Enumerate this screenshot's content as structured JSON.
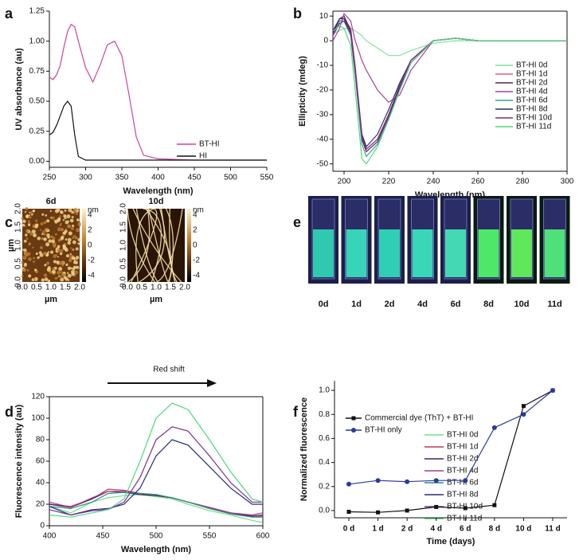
{
  "panel_labels": [
    "a",
    "b",
    "c",
    "d",
    "e",
    "f"
  ],
  "chart_data": [
    {
      "type": "line",
      "x_label": "Wavelength (nm)",
      "y_label": "UV absorbance (au)",
      "x": [
        250,
        255,
        260,
        265,
        270,
        275,
        280,
        285,
        290,
        300,
        310,
        320,
        330,
        340,
        350,
        360,
        370,
        380,
        400,
        450,
        500,
        550
      ],
      "xlim": [
        250,
        550
      ],
      "xticks": [
        250,
        300,
        350,
        400,
        450,
        500,
        550
      ],
      "ylim": [
        -0.05,
        1.25
      ],
      "yticks": [
        {
          "value": 0,
          "label": "0.00"
        },
        {
          "value": 0.25,
          "label": "0.25"
        },
        {
          "value": 0.5,
          "label": "0.50"
        },
        {
          "value": 0.75,
          "label": "0.75"
        },
        {
          "value": 1,
          "label": "1.00"
        },
        {
          "value": 1.25,
          "label": "1.25"
        }
      ],
      "series": [
        {
          "name": "BT-HI",
          "color": "#c8449c",
          "values": [
            0.7,
            0.68,
            0.72,
            0.8,
            0.95,
            1.08,
            1.14,
            1.12,
            1.0,
            0.78,
            0.66,
            0.8,
            0.97,
            1.0,
            0.88,
            0.55,
            0.2,
            0.05,
            0.02,
            0.01,
            0.01,
            0.01
          ]
        },
        {
          "name": "HI",
          "color": "#111111",
          "values": [
            0.22,
            0.24,
            0.3,
            0.38,
            0.46,
            0.5,
            0.46,
            0.22,
            0.04,
            0.01,
            0.01,
            0.01,
            0.01,
            0.01,
            0.01,
            0.01,
            0.01,
            0.01,
            0.01,
            0.01,
            0.01,
            0.01
          ]
        }
      ]
    },
    {
      "type": "line",
      "x_label": "Wavelength (nm)",
      "y_label": "Ellipticity (mdeg)",
      "x": [
        195,
        198,
        200,
        203,
        205,
        208,
        210,
        215,
        220,
        225,
        230,
        240,
        250,
        260,
        280,
        300
      ],
      "xlim": [
        195,
        300
      ],
      "xticks": [
        200,
        220,
        240,
        260,
        280,
        300
      ],
      "ylim": [
        -53,
        12
      ],
      "yticks": [
        -50,
        -40,
        -30,
        -20,
        -10,
        0,
        10
      ],
      "series": [
        {
          "name": "BT-HI 0d",
          "color": "#7de39a",
          "values": [
            3,
            4,
            5,
            5,
            4,
            2,
            0,
            -3,
            -6,
            -6,
            -4,
            -1,
            0,
            0,
            0,
            0
          ]
        },
        {
          "name": "BT-HI 1d",
          "color": "#d95c8a",
          "values": [
            2,
            8,
            9,
            5,
            -10,
            -38,
            -44,
            -40,
            -30,
            -18,
            -8,
            0,
            1,
            0,
            0,
            0
          ]
        },
        {
          "name": "BT-HI 2d",
          "color": "#5b1f4f",
          "values": [
            4,
            9,
            10,
            4,
            -12,
            -40,
            -45,
            -41,
            -31,
            -19,
            -9,
            0,
            1,
            0,
            0,
            0
          ]
        },
        {
          "name": "BT-HI 4d",
          "color": "#a0449a",
          "values": [
            0,
            5,
            11,
            8,
            0,
            -8,
            -12,
            -20,
            -25,
            -22,
            -12,
            0,
            1,
            0,
            0,
            0
          ]
        },
        {
          "name": "BT-HI 6d",
          "color": "#3aa090",
          "values": [
            3,
            8,
            8,
            2,
            -14,
            -42,
            -47,
            -42,
            -32,
            -20,
            -9,
            0,
            1,
            0,
            0,
            0
          ]
        },
        {
          "name": "BT-HI 8d",
          "color": "#2a2f6e",
          "values": [
            3,
            9,
            9,
            3,
            -12,
            -38,
            -43,
            -38,
            -28,
            -17,
            -8,
            0,
            1,
            0,
            0,
            0
          ]
        },
        {
          "name": "BT-HI 10d",
          "color": "#7a2a8a",
          "values": [
            2,
            7,
            8,
            3,
            -12,
            -39,
            -44,
            -40,
            -30,
            -18,
            -8,
            0,
            1,
            0,
            0,
            0
          ]
        },
        {
          "name": "BT-HI 11d",
          "color": "#55d67a",
          "values": [
            4,
            6,
            5,
            -2,
            -20,
            -48,
            -50,
            -43,
            -32,
            -20,
            -9,
            0,
            1,
            0,
            0,
            0
          ]
        }
      ]
    },
    {
      "type": "line",
      "x_label": "Wavelength (nm)",
      "y_label": "Fluorescence intensity (au)",
      "annotation": "Red shift",
      "x": [
        400,
        420,
        440,
        455,
        470,
        485,
        500,
        515,
        530,
        550,
        570,
        590,
        600
      ],
      "xlim": [
        400,
        600
      ],
      "xticks": [
        400,
        450,
        500,
        550,
        600
      ],
      "ylim": [
        0,
        120
      ],
      "yticks": [
        0,
        20,
        40,
        60,
        80,
        100,
        120
      ],
      "series": [
        {
          "name": "BT-HI 0d",
          "color": "#6fe08a",
          "values": [
            18,
            12,
            22,
            26,
            28,
            29,
            27,
            25,
            20,
            14,
            10,
            5,
            3
          ]
        },
        {
          "name": "BT-HI 1d",
          "color": "#c2365a",
          "values": [
            20,
            18,
            25,
            34,
            33,
            30,
            28,
            26,
            22,
            16,
            12,
            8,
            8
          ]
        },
        {
          "name": "BT-HI 2d",
          "color": "#4a1f55",
          "values": [
            20,
            17,
            25,
            32,
            31,
            29,
            28,
            26,
            22,
            17,
            12,
            9,
            10
          ]
        },
        {
          "name": "BT-HI 4d",
          "color": "#a23c8c",
          "values": [
            22,
            17,
            26,
            32,
            32,
            30,
            29,
            26,
            22,
            17,
            12,
            10,
            12
          ]
        },
        {
          "name": "BT-HI 6d",
          "color": "#2f8f86",
          "values": [
            18,
            16,
            22,
            30,
            31,
            30,
            29,
            26,
            22,
            16,
            11,
            8,
            9
          ]
        },
        {
          "name": "BT-HI 8d",
          "color": "#2a2a7a",
          "values": [
            18,
            10,
            15,
            16,
            20,
            35,
            65,
            80,
            75,
            55,
            35,
            20,
            20
          ]
        },
        {
          "name": "BT-HI 10d",
          "color": "#7a2f8e",
          "values": [
            15,
            10,
            14,
            15,
            22,
            45,
            80,
            92,
            88,
            65,
            40,
            22,
            22
          ]
        },
        {
          "name": "BT-HI 11d",
          "color": "#4fd87c",
          "values": [
            10,
            8,
            12,
            15,
            25,
            60,
            100,
            114,
            108,
            80,
            50,
            25,
            22
          ]
        }
      ]
    },
    {
      "type": "line",
      "x_label": "Time (days)",
      "y_label": "Normalized fluorescence",
      "categories": [
        "0 d",
        "1 d",
        "2 d",
        "4 d",
        "6 d",
        "8 d",
        "10 d",
        "11 d"
      ],
      "ylim": [
        -0.06,
        1.08
      ],
      "yticks": [
        {
          "value": 0,
          "label": "0.0"
        },
        {
          "value": 0.2,
          "label": "0.2"
        },
        {
          "value": 0.4,
          "label": "0.4"
        },
        {
          "value": 0.6,
          "label": "0.6"
        },
        {
          "value": 0.8,
          "label": "0.8"
        },
        {
          "value": 1,
          "label": "1.0"
        }
      ],
      "series": [
        {
          "name": "Commercial dye (ThT) + BT-HI",
          "color": "#111111",
          "marker": "square",
          "values": [
            -0.01,
            -0.015,
            0.0,
            0.03,
            0.02,
            0.045,
            0.87,
            1.0
          ]
        },
        {
          "name": "BT-HI only",
          "color": "#2b3b9c",
          "marker": "circle",
          "values": [
            0.22,
            0.25,
            0.24,
            0.25,
            0.25,
            0.69,
            0.8,
            1.0
          ]
        }
      ]
    }
  ],
  "afm": {
    "titles": [
      "6d",
      "10d"
    ],
    "axis_label": "µm",
    "ticks": [
      "0.0",
      "0.5",
      "1.0",
      "1.5",
      "2.0"
    ],
    "colorbar_ticks": [
      "4",
      "2",
      "0",
      "-2",
      "-4"
    ],
    "colorbar_unit": "nm"
  },
  "cuvettes": {
    "labels": [
      "0d",
      "1d",
      "2d",
      "4d",
      "6d",
      "8d",
      "10d",
      "11d"
    ],
    "colors": [
      "#2fc9b0",
      "#38d4b8",
      "#2fcfb5",
      "#3ad6b8",
      "#45d8b5",
      "#4de86a",
      "#5ee85a",
      "#4fe07a"
    ]
  }
}
